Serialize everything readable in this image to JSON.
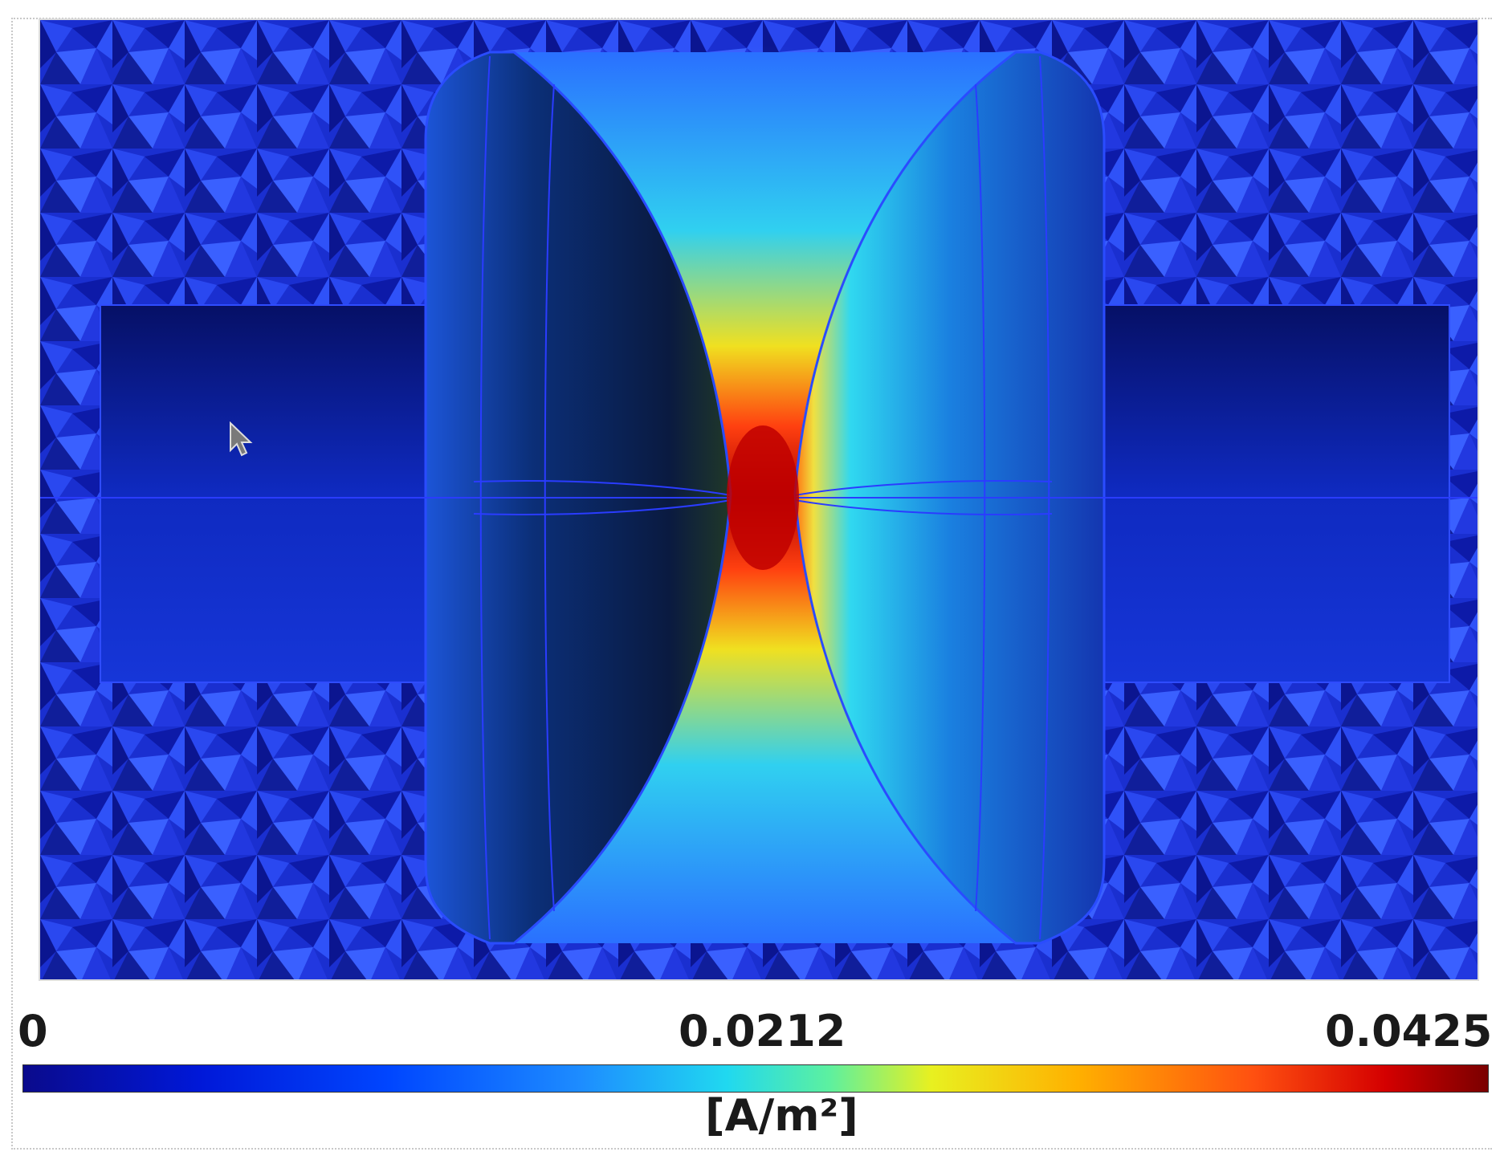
{
  "colorbar": {
    "min_label": "0",
    "mid_label": "0.0212",
    "max_label": "0.0425",
    "unit_label": "[A/m²]",
    "colormap": "jet",
    "colors": [
      "#0a0a8c",
      "#0046ff",
      "#20d8f0",
      "#e8f020",
      "#ff5010",
      "#7a0000"
    ]
  },
  "scene": {
    "background_color": "#1a2fd0",
    "hotspot_color": "#d40000",
    "icons": [
      "mouse-pointer-icon"
    ]
  }
}
